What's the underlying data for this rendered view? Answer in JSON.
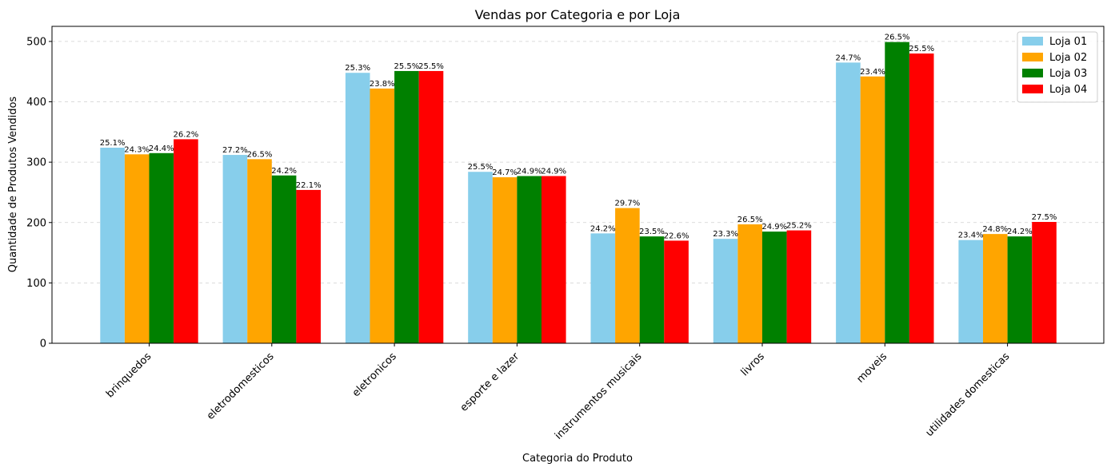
{
  "chart_data": {
    "type": "bar",
    "title": "Vendas por Categoria e por Loja",
    "xlabel": "Categoria do Produto",
    "ylabel": "Quantidade de Produtos Vendidos",
    "ylim": [
      0,
      525
    ],
    "yticks": [
      0,
      100,
      200,
      300,
      400,
      500
    ],
    "grid": "horizontal dashed",
    "legend_position": "top-right",
    "categories": [
      "brinquedos",
      "eletrodomesticos",
      "eletronicos",
      "esporte e lazer",
      "instrumentos musicais",
      "livros",
      "moveis",
      "utilidades domesticas"
    ],
    "series": [
      {
        "name": "Loja 01",
        "color": "#87CEEB",
        "values": [
          324,
          312,
          448,
          284,
          182,
          173,
          465,
          171
        ],
        "labels": [
          "25.1%",
          "27.2%",
          "25.3%",
          "25.5%",
          "24.2%",
          "23.3%",
          "24.7%",
          "23.4%"
        ]
      },
      {
        "name": "Loja 02",
        "color": "#FFA500",
        "values": [
          313,
          305,
          422,
          275,
          224,
          197,
          442,
          181
        ],
        "labels": [
          "24.3%",
          "26.5%",
          "23.8%",
          "24.7%",
          "29.7%",
          "26.5%",
          "23.4%",
          "24.8%"
        ]
      },
      {
        "name": "Loja 03",
        "color": "#008000",
        "values": [
          315,
          278,
          451,
          277,
          177,
          185,
          499,
          177
        ],
        "labels": [
          "24.4%",
          "24.2%",
          "25.5%",
          "24.9%",
          "23.5%",
          "24.9%",
          "26.5%",
          "24.2%"
        ]
      },
      {
        "name": "Loja 04",
        "color": "#FF0000",
        "values": [
          338,
          254,
          451,
          277,
          170,
          187,
          480,
          201
        ],
        "labels": [
          "26.2%",
          "22.1%",
          "25.5%",
          "24.9%",
          "22.6%",
          "25.2%",
          "25.5%",
          "27.5%"
        ]
      }
    ]
  }
}
